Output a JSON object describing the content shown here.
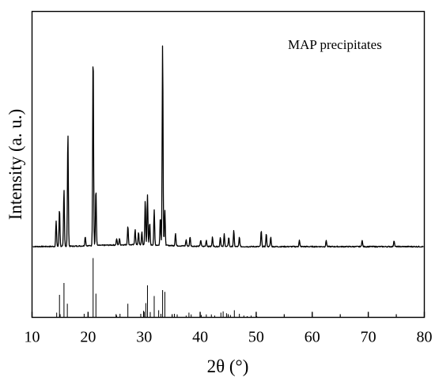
{
  "chart_data": {
    "type": "line",
    "xlabel": "2θ (°)",
    "ylabel": "Intensity (a. u.)",
    "xlim": [
      10,
      80
    ],
    "xticks": [
      10,
      20,
      30,
      40,
      50,
      60,
      70,
      80
    ],
    "y_ticks_labeled": false,
    "grid": false,
    "annotation": "MAP precipitates",
    "series": [
      {
        "style": "continuous-pattern",
        "baseline": 1.0,
        "peaks": [
          [
            14.3,
            8
          ],
          [
            14.9,
            12
          ],
          [
            15.7,
            18
          ],
          [
            16.4,
            36
          ],
          [
            19.5,
            3
          ],
          [
            20.9,
            62
          ],
          [
            21.4,
            18
          ],
          [
            25.1,
            2
          ],
          [
            25.6,
            2
          ],
          [
            27.1,
            6
          ],
          [
            28.4,
            5
          ],
          [
            29.0,
            4
          ],
          [
            29.6,
            4
          ],
          [
            30.2,
            14
          ],
          [
            30.6,
            16
          ],
          [
            31.0,
            7
          ],
          [
            31.8,
            11
          ],
          [
            32.9,
            9
          ],
          [
            33.3,
            64
          ],
          [
            33.7,
            11
          ],
          [
            35.6,
            4
          ],
          [
            37.5,
            2
          ],
          [
            38.2,
            3
          ],
          [
            40.1,
            2
          ],
          [
            41.1,
            2
          ],
          [
            42.2,
            3
          ],
          [
            43.6,
            3
          ],
          [
            44.3,
            4
          ],
          [
            45.1,
            3
          ],
          [
            46.0,
            5
          ],
          [
            47.0,
            3
          ],
          [
            50.9,
            5
          ],
          [
            51.8,
            4
          ],
          [
            52.6,
            3
          ],
          [
            57.7,
            2
          ],
          [
            62.5,
            2
          ],
          [
            68.9,
            2
          ],
          [
            74.6,
            2
          ]
        ]
      },
      {
        "style": "reference-sticks",
        "sticks": [
          [
            14.4,
            8
          ],
          [
            14.9,
            38
          ],
          [
            15.7,
            58
          ],
          [
            16.3,
            23
          ],
          [
            19.3,
            6
          ],
          [
            20.9,
            100
          ],
          [
            21.4,
            40
          ],
          [
            25.1,
            3
          ],
          [
            25.7,
            6
          ],
          [
            27.1,
            23
          ],
          [
            29.4,
            6
          ],
          [
            29.9,
            11
          ],
          [
            30.3,
            24
          ],
          [
            30.6,
            54
          ],
          [
            31.1,
            9
          ],
          [
            31.8,
            36
          ],
          [
            32.6,
            12
          ],
          [
            33.0,
            6
          ],
          [
            33.3,
            46
          ],
          [
            33.7,
            43
          ],
          [
            35.4,
            6
          ],
          [
            35.9,
            5
          ],
          [
            37.5,
            3
          ],
          [
            38.0,
            8
          ],
          [
            38.4,
            5
          ],
          [
            40.2,
            4
          ],
          [
            41.1,
            5
          ],
          [
            42.0,
            5
          ],
          [
            42.6,
            3
          ],
          [
            43.7,
            8
          ],
          [
            44.1,
            10
          ],
          [
            44.7,
            7
          ],
          [
            45.4,
            4
          ],
          [
            46.1,
            12
          ],
          [
            47.0,
            6
          ],
          [
            47.8,
            3
          ],
          [
            48.4,
            2
          ],
          [
            49.1,
            3
          ],
          [
            50.1,
            2
          ]
        ]
      }
    ]
  }
}
